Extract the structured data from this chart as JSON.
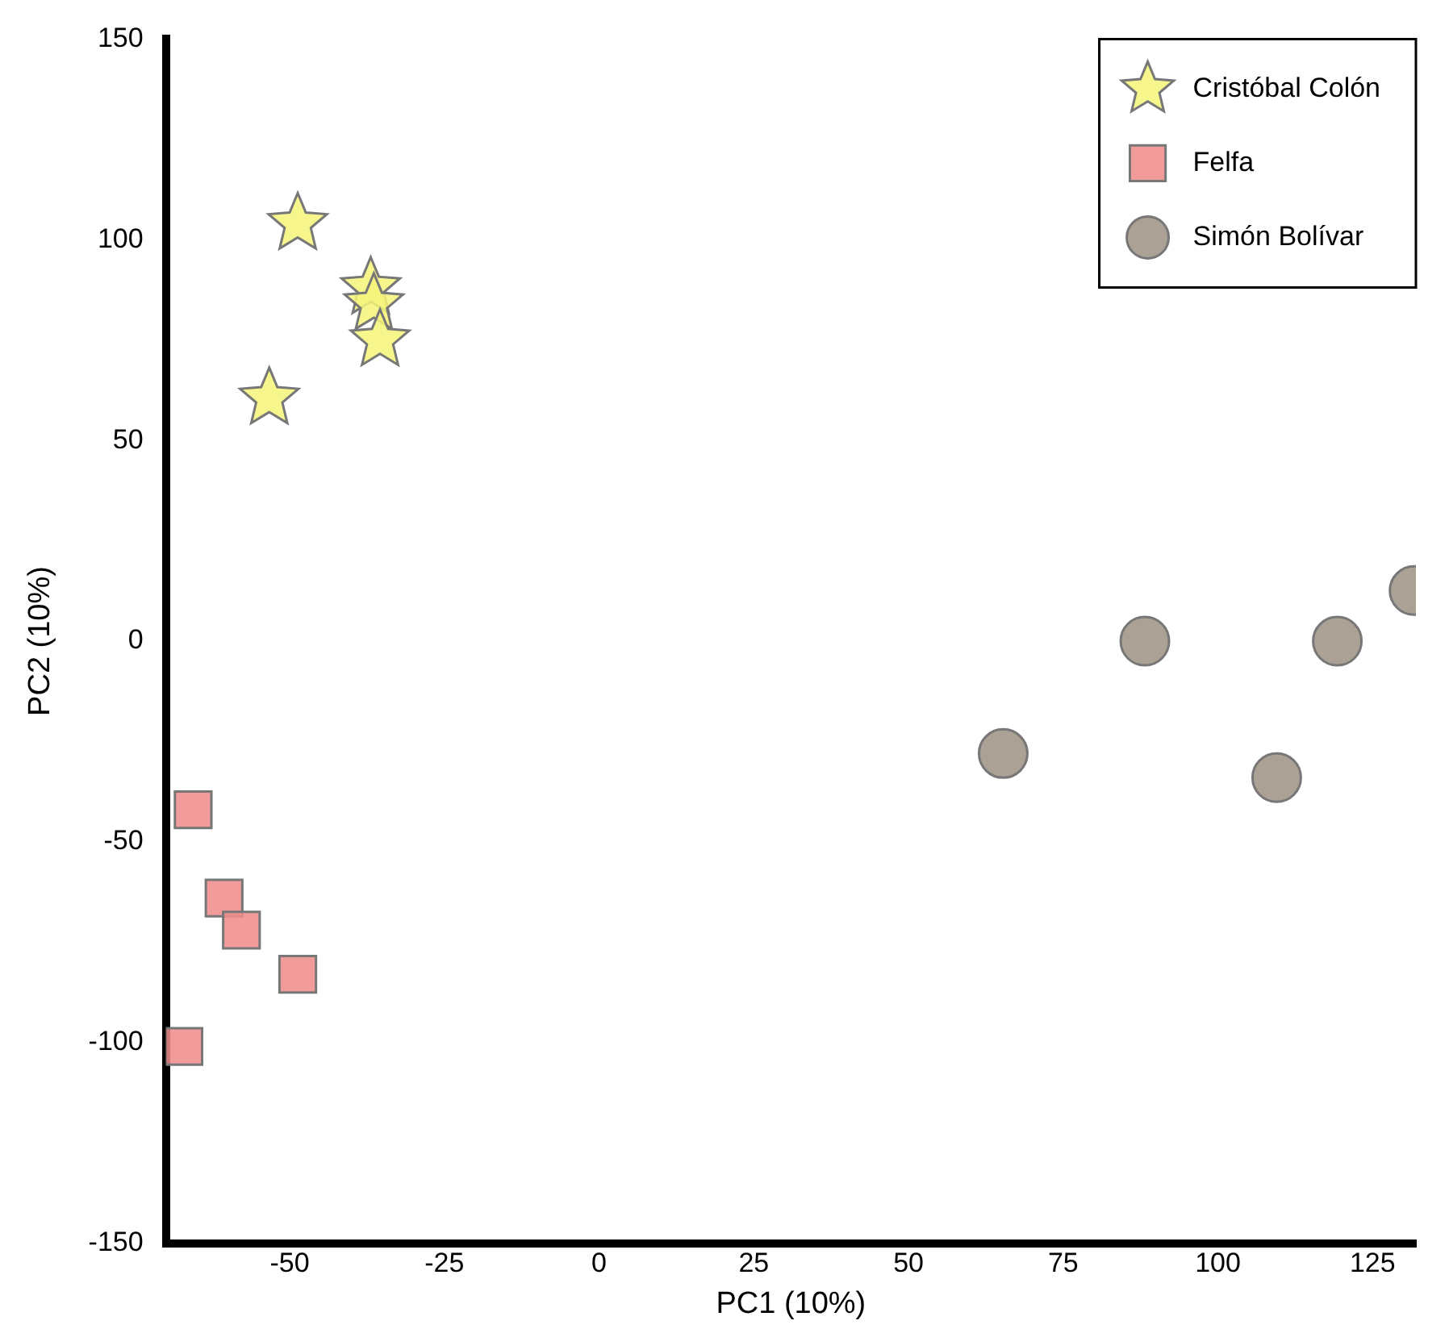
{
  "chart_data": {
    "type": "scatter",
    "xlabel": "PC1 (10%)",
    "ylabel": "PC2 (10%)",
    "xlim": [
      -70,
      132
    ],
    "xticks": [
      -50,
      -25,
      0,
      25,
      50,
      75,
      100,
      125
    ],
    "ylim": [
      -150,
      150
    ],
    "yticks": [
      -150,
      -100,
      -50,
      0,
      50,
      100,
      150
    ],
    "grid": false,
    "legend": "top right",
    "series": [
      {
        "name": "Cristóbal Colón",
        "color": "#f5f57a",
        "marker": "star",
        "x": [
          -48.7,
          -36.9,
          -36.4,
          -35.4,
          -53.3
        ],
        "values": [
          104,
          88,
          84,
          75,
          60.5
        ]
      },
      {
        "name": "Felfa",
        "color": "#f08c8c",
        "marker": "square",
        "x": [
          -65.6,
          -60.6,
          -57.8,
          -48.7,
          -67.1
        ],
        "values": [
          -42,
          -64,
          -72,
          -83,
          -101
        ]
      },
      {
        "name": "Simón Bolívar",
        "color": "#9e9383",
        "marker": "circle",
        "x": [
          65.3,
          88.2,
          109.5,
          119.3,
          131.7
        ],
        "values": [
          -28,
          0,
          -34,
          0,
          12.6
        ]
      }
    ]
  }
}
